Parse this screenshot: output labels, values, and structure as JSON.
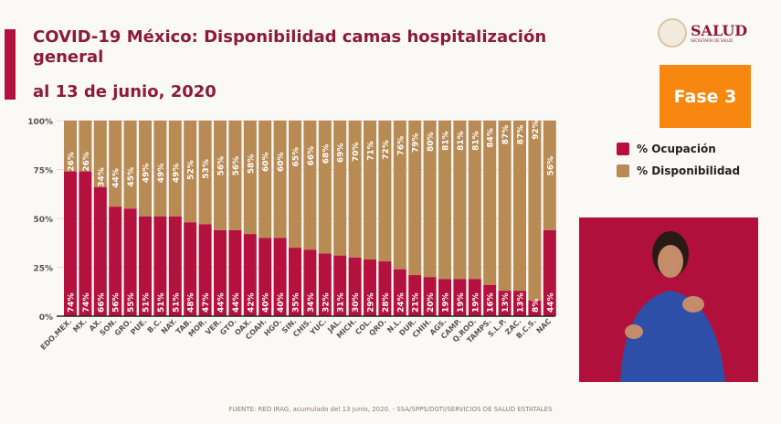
{
  "header": {
    "title": "COVID-19 México: Disponibilidad camas hospitalización general",
    "subtitle": "al 13 de junio, 2020",
    "logo": "SALUD",
    "logo_sub": "SECRETARÍA DE SALUD",
    "phase": "Fase 3"
  },
  "legend": [
    {
      "label": "% Ocupación",
      "color": "#b4113f"
    },
    {
      "label": "% Disponibilidad",
      "color": "#b88a54"
    }
  ],
  "footer": "FUENTE: RED IRAG, acumulado del 13 junio, 2020. - SSA/SPPS/DGTI/SERVICIOS DE SALUD ESTATALES",
  "chart_data": {
    "type": "bar",
    "stacked": true,
    "ylim": [
      0,
      100
    ],
    "yticks": [
      "0%",
      "25%",
      "50%",
      "75%",
      "100%"
    ],
    "categories": [
      "EDO.MEX.",
      "MX.",
      "AX.",
      "SON.",
      "GRO.",
      "PUE.",
      "B.C.",
      "NAY.",
      "TAB.",
      "MOR.",
      "VER.",
      "GTO.",
      "OAX.",
      "COAH.",
      "HGO.",
      "SIN.",
      "CHIS.",
      "YUC.",
      "JAL.",
      "MICH.",
      "COL.",
      "QRO.",
      "N.L.",
      "DUR.",
      "CHIH.",
      "AGS.",
      "CAMP.",
      "Q.ROO.",
      "TAMPS.",
      "S.L.P.",
      "ZAC.",
      "B.C.S.",
      "NAC"
    ],
    "series": [
      {
        "name": "% Ocupación",
        "color": "#b4113f",
        "values": [
          74,
          74,
          66,
          56,
          55,
          51,
          51,
          51,
          48,
          47,
          44,
          44,
          42,
          40,
          40,
          35,
          34,
          32,
          31,
          30,
          29,
          28,
          24,
          21,
          20,
          19,
          19,
          19,
          16,
          13,
          13,
          8,
          44
        ]
      },
      {
        "name": "% Disponibilidad",
        "color": "#b88a54",
        "values": [
          26,
          26,
          34,
          44,
          45,
          49,
          49,
          49,
          52,
          53,
          56,
          56,
          58,
          60,
          60,
          65,
          66,
          68,
          69,
          70,
          71,
          72,
          76,
          79,
          80,
          81,
          81,
          81,
          84,
          87,
          87,
          92,
          56
        ]
      }
    ]
  }
}
